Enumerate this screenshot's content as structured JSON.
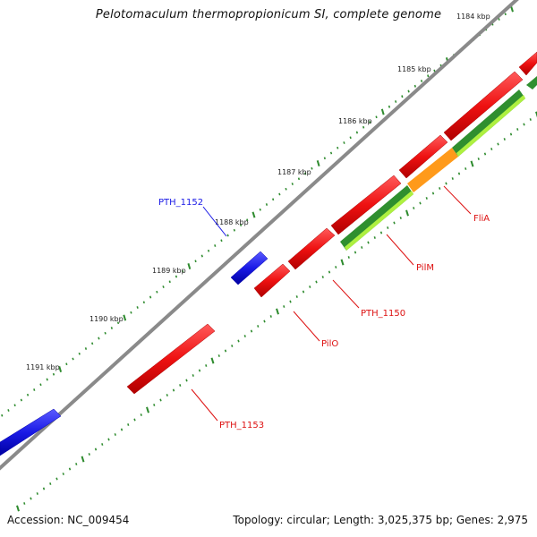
{
  "title": "Pelotomaculum thermopropionicum SI, complete genome",
  "footer": {
    "accession": "Accession: NC_009454",
    "summary": "Topology: circular; Length: 3,025,375 bp; Genes: 2,975"
  },
  "ticks": [
    {
      "label": "1184 kbp"
    },
    {
      "label": "1185 kbp"
    },
    {
      "label": "1186 kbp"
    },
    {
      "label": "1187 kbp"
    },
    {
      "label": "1188 kbp"
    },
    {
      "label": "1189 kbp"
    },
    {
      "label": "1190 kbp"
    },
    {
      "label": "1191 kbp"
    }
  ],
  "colors": {
    "forward_gene": "#ee1111",
    "reverse_gene": "#1a1ae6",
    "backbone": "#8a8a8a",
    "tick": "#2e8b2e",
    "cds_dark": "#2f8f2f",
    "cds_light": "#aef040",
    "fliA_band": "#ff9a1a"
  },
  "labels": [
    {
      "text": "PTH_1152",
      "color": "#1a1ae6"
    },
    {
      "text": "FliA",
      "color": "#dd1111"
    },
    {
      "text": "PilM",
      "color": "#dd1111"
    },
    {
      "text": "PTH_1150",
      "color": "#dd1111"
    },
    {
      "text": "PilO",
      "color": "#dd1111"
    },
    {
      "text": "PTH_1153",
      "color": "#dd1111"
    }
  ]
}
